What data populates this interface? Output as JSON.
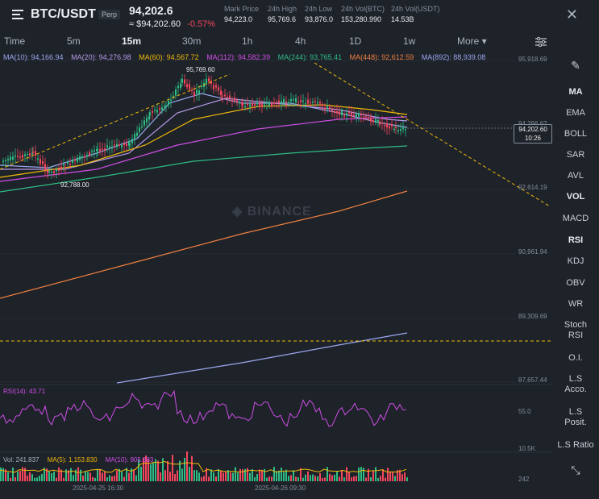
{
  "header": {
    "pair": "BTC/USDT",
    "contract": "Perp",
    "last_price": "94,202.6",
    "converted_price": "≈ $94,202.60",
    "change": "-0.57%",
    "stats": [
      {
        "label": "Mark Price",
        "value": "94,223.0"
      },
      {
        "label": "24h High",
        "value": "95,769.6"
      },
      {
        "label": "24h Low",
        "value": "93,876.0"
      },
      {
        "label": "24h Vol(BTC)",
        "value": "153,280.990"
      },
      {
        "label": "24h Vol(USDT)",
        "value": "14.53B"
      }
    ],
    "close_icon": "✕"
  },
  "timeframes": [
    "Time",
    "5m",
    "15m",
    "30m",
    "1h",
    "4h",
    "1D",
    "1w",
    "More ▾"
  ],
  "active_timeframe": "15m",
  "ma_legend": [
    {
      "label": "MA(10): 94,166.94",
      "color": "#9aa8f0"
    },
    {
      "label": "MA(20): 94,276.98",
      "color": "#9aa8f0"
    },
    {
      "label": "MA(60): 94,567.72",
      "color": "#f0b90b"
    },
    {
      "label": "MA(112): 94,582.39",
      "color": "#cf4ee8"
    },
    {
      "label": "MA(244): 93,765.41",
      "color": "#2ebd85"
    },
    {
      "label": "MA(448): 92,612.59",
      "color": "#f08040"
    },
    {
      "label": "MA(892): 88,939.08",
      "color": "#9aa8f0"
    }
  ],
  "price_axis": [
    "95,918.69",
    "94,266.62",
    "92,614.19",
    "90,961.94",
    "89,309.69",
    "87,657.44"
  ],
  "current_price_label": "94,202.60",
  "countdown": "10:26",
  "annotations": {
    "high": "95,769.60",
    "low": "92,788.00"
  },
  "watermark": "◈ BINANCE",
  "rsi": {
    "label": "RSI(14): 43.71",
    "axis": "55.0"
  },
  "volume": {
    "items": [
      {
        "label": "Vol: 241.837",
        "color": "#aab2bd"
      },
      {
        "label": "MA(5): 1,153.830",
        "color": "#f0b90b"
      },
      {
        "label": "MA(10): 905.683",
        "color": "#cf4ee8"
      }
    ],
    "axis_top": "10.5K",
    "axis_bottom": "242"
  },
  "dates": [
    "2025-04-25 16:30",
    "2025-04-26 09:30"
  ],
  "indicators": [
    {
      "label": "✎",
      "bold": false
    },
    {
      "label": "MA",
      "bold": true
    },
    {
      "label": "EMA",
      "bold": false
    },
    {
      "label": "BOLL",
      "bold": false
    },
    {
      "label": "SAR",
      "bold": false
    },
    {
      "label": "AVL",
      "bold": false
    },
    {
      "label": "VOL",
      "bold": true
    },
    {
      "label": "MACD",
      "bold": false
    },
    {
      "label": "RSI",
      "bold": true
    },
    {
      "label": "KDJ",
      "bold": false
    },
    {
      "label": "OBV",
      "bold": false
    },
    {
      "label": "WR",
      "bold": false
    },
    {
      "label": "Stoch RSI",
      "bold": false
    },
    {
      "label": "O.I.",
      "bold": false
    },
    {
      "label": "L.S Acco.",
      "bold": false
    },
    {
      "label": "L.S Posit.",
      "bold": false
    },
    {
      "label": "L.S Ratio",
      "bold": false
    },
    {
      "label": "⤡",
      "bold": false
    }
  ],
  "colors": {
    "up": "#2ebd85",
    "down": "#f6465d",
    "trend": "#f0b90b"
  }
}
